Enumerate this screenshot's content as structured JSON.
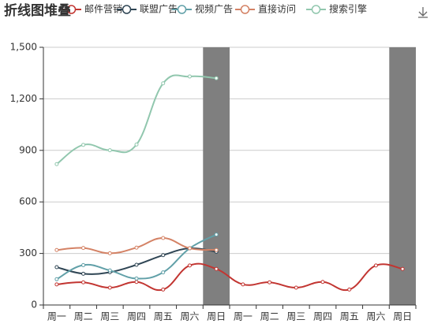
{
  "chart_data": {
    "type": "line",
    "title": "折线图堆叠",
    "categories": [
      "周一",
      "周二",
      "周三",
      "周四",
      "周五",
      "周六",
      "周日",
      "周一",
      "周二",
      "周三",
      "周四",
      "周五",
      "周六",
      "周日"
    ],
    "series": [
      {
        "name": "邮件营销",
        "color": "#c23531",
        "values": [
          120,
          132,
          101,
          134,
          90,
          230,
          210,
          120,
          132,
          101,
          134,
          90,
          230,
          210
        ]
      },
      {
        "name": "联盟广告",
        "color": "#2f4554",
        "values": [
          220,
          182,
          191,
          234,
          290,
          330,
          310,
          null,
          null,
          null,
          null,
          null,
          null,
          null
        ]
      },
      {
        "name": "视频广告",
        "color": "#61a0a8",
        "values": [
          150,
          232,
          201,
          154,
          190,
          330,
          410,
          null,
          null,
          null,
          null,
          null,
          null,
          null
        ]
      },
      {
        "name": "直接访问",
        "color": "#d48265",
        "values": [
          320,
          332,
          301,
          334,
          390,
          330,
          320,
          null,
          null,
          null,
          null,
          null,
          null,
          null
        ]
      },
      {
        "name": "搜索引擎",
        "color": "#91c7ae",
        "values": [
          820,
          932,
          901,
          934,
          1290,
          1330,
          1320,
          null,
          null,
          null,
          null,
          null,
          null,
          null
        ]
      }
    ],
    "ylim": [
      0,
      1500
    ],
    "yticks": [
      0,
      300,
      600,
      900,
      {
        "value": 1200,
        "label": "1,200"
      },
      {
        "value": 1500,
        "label": "1,500"
      }
    ],
    "grid": true,
    "smooth": true,
    "highlight_categories": [
      6,
      13
    ],
    "highlight_color": "#7f7f7f"
  }
}
